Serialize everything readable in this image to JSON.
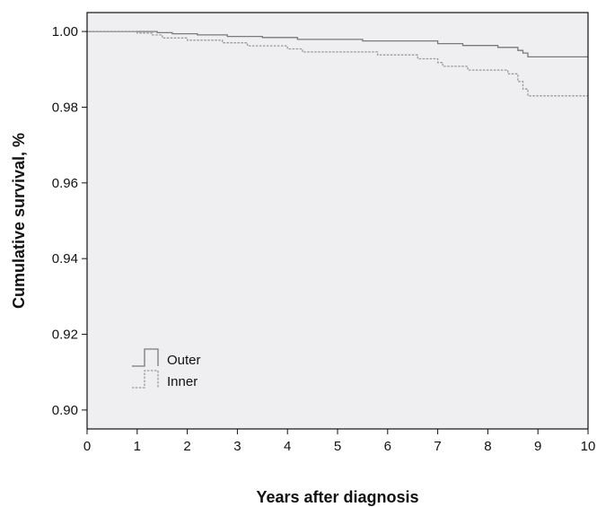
{
  "chart_data": {
    "type": "line",
    "title": "",
    "xlabel": "Years after diagnosis",
    "ylabel": "Cumulative survival, %",
    "xlim": [
      0,
      10
    ],
    "ylim": [
      0.895,
      1.005
    ],
    "x_ticks": [
      0,
      1,
      2,
      3,
      4,
      5,
      6,
      7,
      8,
      9,
      10
    ],
    "y_ticks": [
      0.9,
      0.92,
      0.94,
      0.96,
      0.98,
      1.0
    ],
    "y_tick_labels": [
      "0.90",
      "0.92",
      "0.94",
      "0.96",
      "0.98",
      "1.00"
    ],
    "grid": false,
    "legend_position": "bottom-left",
    "background_color": "#efeff1",
    "series": [
      {
        "name": "Outer",
        "style": "solid",
        "color": "#7a7a7a",
        "x": [
          0,
          1.1,
          1.4,
          1.7,
          2.2,
          2.8,
          3.5,
          4.2,
          5.5,
          7.0,
          7.5,
          8.2,
          8.6,
          8.7,
          8.8,
          10
        ],
        "y": [
          1.0,
          1.0,
          0.9997,
          0.9994,
          0.9991,
          0.9987,
          0.9984,
          0.9979,
          0.9975,
          0.9968,
          0.9963,
          0.9958,
          0.995,
          0.9943,
          0.9933,
          0.9933
        ]
      },
      {
        "name": "Inner",
        "style": "dashed",
        "color": "#9a9a9a",
        "x": [
          0,
          1.0,
          1.3,
          1.5,
          2.0,
          2.7,
          3.2,
          4.0,
          4.3,
          5.8,
          6.6,
          7.0,
          7.1,
          7.6,
          8.4,
          8.6,
          8.7,
          8.8,
          10
        ],
        "y": [
          1.0,
          0.9996,
          0.9991,
          0.9983,
          0.9977,
          0.997,
          0.9962,
          0.9954,
          0.9946,
          0.9938,
          0.9928,
          0.9918,
          0.9908,
          0.9898,
          0.9888,
          0.9868,
          0.9848,
          0.983,
          0.983
        ]
      }
    ]
  }
}
